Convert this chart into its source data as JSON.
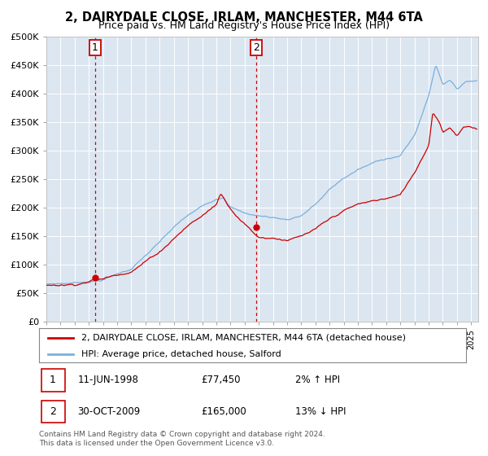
{
  "title": "2, DAIRYDALE CLOSE, IRLAM, MANCHESTER, M44 6TA",
  "subtitle": "Price paid vs. HM Land Registry's House Price Index (HPI)",
  "legend_line1": "2, DAIRYDALE CLOSE, IRLAM, MANCHESTER, M44 6TA (detached house)",
  "legend_line2": "HPI: Average price, detached house, Salford",
  "annotation1_date": "11-JUN-1998",
  "annotation1_price": "£77,450",
  "annotation1_hpi": "2% ↑ HPI",
  "annotation2_date": "30-OCT-2009",
  "annotation2_price": "£165,000",
  "annotation2_hpi": "13% ↓ HPI",
  "footer": "Contains HM Land Registry data © Crown copyright and database right 2024.\nThis data is licensed under the Open Government Licence v3.0.",
  "sale1_x": 1998.44,
  "sale1_y": 77450,
  "sale2_x": 2009.83,
  "sale2_y": 165000,
  "hpi_color": "#7ab0dc",
  "price_color": "#cc0000",
  "plot_bg": "#dce6f1",
  "ylim": [
    0,
    500000
  ],
  "xlim_start": 1995,
  "xlim_end": 2025.5,
  "ytick_labels": [
    "£0",
    "£50K",
    "£100K",
    "£150K",
    "£200K",
    "£250K",
    "£300K",
    "£350K",
    "£400K",
    "£450K",
    "£500K"
  ],
  "ytick_values": [
    0,
    50000,
    100000,
    150000,
    200000,
    250000,
    300000,
    350000,
    400000,
    450000,
    500000
  ]
}
